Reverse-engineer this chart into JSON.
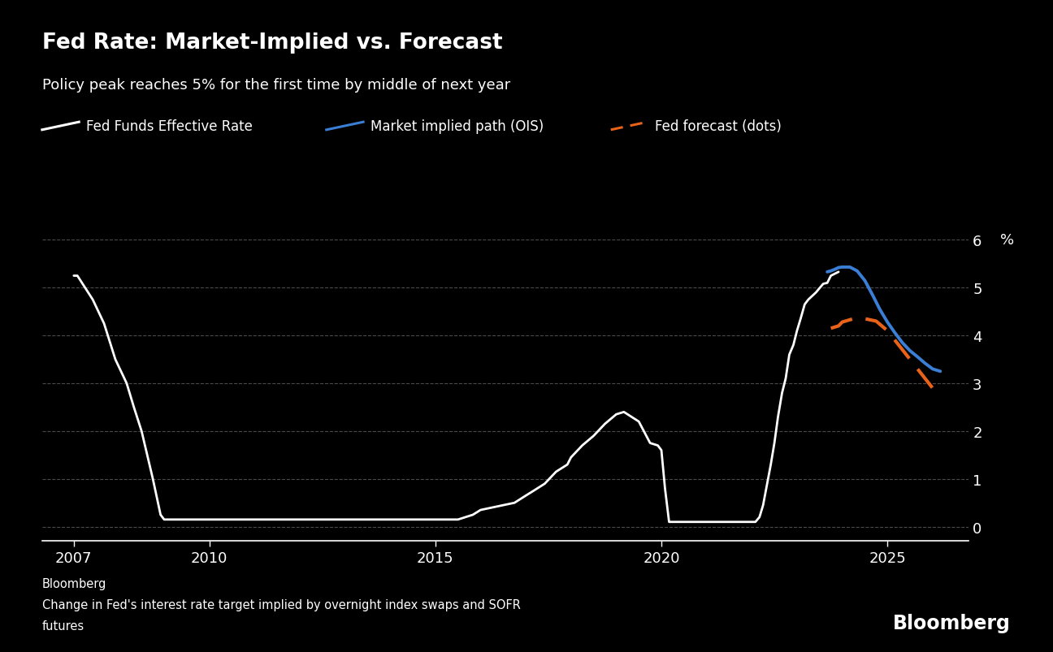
{
  "title": "Fed Rate: Market-Implied vs. Forecast",
  "subtitle": "Policy peak reaches 5% for the first time by middle of next year",
  "source_line1": "Bloomberg",
  "source_line2": "Change in Fed's interest rate target implied by overnight index swaps and SOFR",
  "source_line3": "futures",
  "bloomberg_label": "Bloomberg",
  "ylabel": "%",
  "ylim": [
    -0.3,
    6.8
  ],
  "yticks": [
    0,
    1,
    2,
    3,
    4,
    5,
    6
  ],
  "ytick_labels": [
    "0",
    "1",
    "2",
    "3",
    "4",
    "5",
    "6"
  ],
  "xlim_start": 2006.3,
  "xlim_end": 2026.8,
  "xticks": [
    2007,
    2010,
    2015,
    2020,
    2025
  ],
  "background_color": "#000000",
  "text_color": "#ffffff",
  "grid_color": "#4a4a4a",
  "legend_items": [
    {
      "label": "Fed Funds Effective Rate",
      "color": "#ffffff",
      "linestyle": "solid"
    },
    {
      "label": "Market implied path (OIS)",
      "color": "#3a7fd5",
      "linestyle": "solid"
    },
    {
      "label": "Fed forecast (dots)",
      "color": "#e8621a",
      "linestyle": "dashed"
    }
  ],
  "fed_funds_x": [
    2007.0,
    2007.08,
    2007.42,
    2007.67,
    2007.92,
    2008.17,
    2008.33,
    2008.5,
    2008.75,
    2008.92,
    2009.0,
    2009.25,
    2009.5,
    2009.75,
    2010.0,
    2010.5,
    2011.0,
    2011.5,
    2012.0,
    2012.5,
    2013.0,
    2013.5,
    2014.0,
    2014.5,
    2015.0,
    2015.25,
    2015.5,
    2015.83,
    2016.0,
    2016.25,
    2016.5,
    2016.75,
    2017.0,
    2017.17,
    2017.42,
    2017.67,
    2017.92,
    2018.0,
    2018.25,
    2018.5,
    2018.75,
    2019.0,
    2019.17,
    2019.5,
    2019.75,
    2019.92,
    2020.0,
    2020.08,
    2020.17,
    2020.25,
    2020.5,
    2020.75,
    2021.0,
    2021.25,
    2021.5,
    2021.75,
    2022.0,
    2022.08,
    2022.17,
    2022.25,
    2022.33,
    2022.42,
    2022.5,
    2022.58,
    2022.67,
    2022.75,
    2022.83,
    2022.92,
    2023.0,
    2023.08,
    2023.17,
    2023.25,
    2023.42,
    2023.58,
    2023.67,
    2023.75,
    2023.92
  ],
  "fed_funds_y": [
    5.25,
    5.25,
    4.75,
    4.25,
    3.5,
    3.0,
    2.5,
    2.0,
    1.0,
    0.25,
    0.15,
    0.15,
    0.15,
    0.15,
    0.15,
    0.15,
    0.15,
    0.15,
    0.15,
    0.15,
    0.15,
    0.15,
    0.15,
    0.15,
    0.15,
    0.15,
    0.15,
    0.25,
    0.35,
    0.4,
    0.45,
    0.5,
    0.65,
    0.75,
    0.9,
    1.15,
    1.3,
    1.45,
    1.7,
    1.9,
    2.15,
    2.35,
    2.4,
    2.2,
    1.75,
    1.7,
    1.6,
    0.8,
    0.1,
    0.1,
    0.1,
    0.1,
    0.1,
    0.1,
    0.1,
    0.1,
    0.1,
    0.1,
    0.2,
    0.45,
    0.85,
    1.3,
    1.75,
    2.3,
    2.8,
    3.1,
    3.6,
    3.8,
    4.1,
    4.35,
    4.65,
    4.75,
    4.9,
    5.08,
    5.1,
    5.25,
    5.33
  ],
  "market_implied_x": [
    2023.67,
    2023.75,
    2023.83,
    2023.92,
    2024.0,
    2024.17,
    2024.33,
    2024.5,
    2024.67,
    2024.83,
    2025.0,
    2025.17,
    2025.33,
    2025.5,
    2025.67,
    2025.83,
    2026.0,
    2026.17
  ],
  "market_implied_y": [
    5.33,
    5.35,
    5.38,
    5.42,
    5.43,
    5.43,
    5.35,
    5.15,
    4.85,
    4.55,
    4.28,
    4.05,
    3.85,
    3.68,
    3.55,
    3.42,
    3.3,
    3.25
  ],
  "fed_forecast_x": [
    2023.75,
    2023.92,
    2024.0,
    2024.25,
    2024.5,
    2024.75,
    2025.0,
    2025.25,
    2025.5,
    2025.75,
    2026.0,
    2026.17
  ],
  "fed_forecast_y": [
    4.15,
    4.2,
    4.28,
    4.35,
    4.35,
    4.3,
    4.1,
    3.8,
    3.5,
    3.2,
    2.9,
    2.75
  ]
}
